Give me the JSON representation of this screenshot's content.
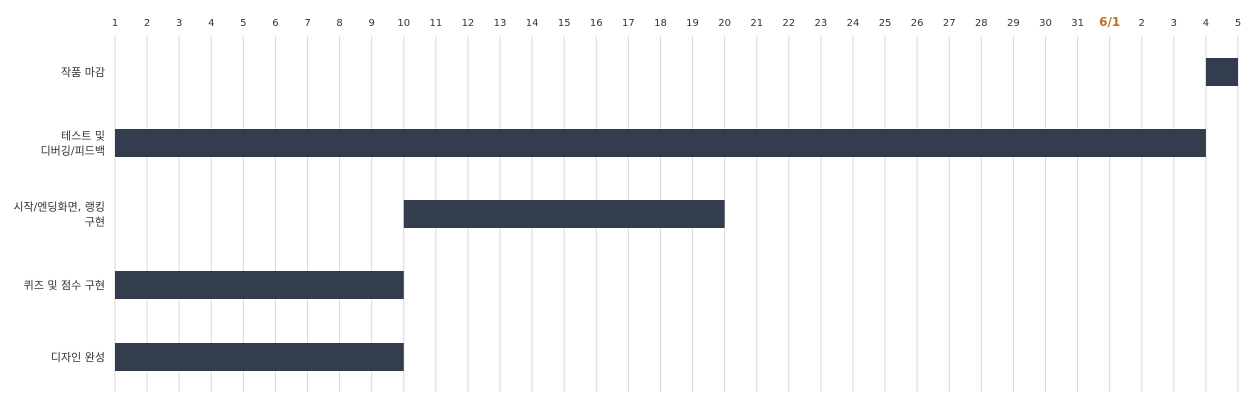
{
  "chart_data": {
    "type": "bar",
    "orientation": "horizontal-gantt",
    "title": "",
    "xlabel": "",
    "ylabel": "",
    "x_ticks": [
      "1",
      "2",
      "3",
      "4",
      "5",
      "6",
      "7",
      "8",
      "9",
      "10",
      "11",
      "12",
      "13",
      "14",
      "15",
      "16",
      "17",
      "18",
      "19",
      "20",
      "21",
      "22",
      "23",
      "24",
      "25",
      "26",
      "27",
      "28",
      "29",
      "30",
      "31",
      "6/1",
      "2",
      "3",
      "4",
      "5"
    ],
    "x_ticks_highlighted": [
      "6/1"
    ],
    "month_accent_color": "#c07020",
    "bar_color": "#333d4e",
    "grid": true,
    "tasks": [
      {
        "name": "작품 마감",
        "lines": [
          "작품 마감"
        ],
        "start": "6/4",
        "end": "6/5"
      },
      {
        "name": "테스트 및 디버깅/피드백",
        "lines": [
          "테스트 및",
          "디버깅/피드백"
        ],
        "start": "5/1",
        "end": "6/4"
      },
      {
        "name": "시작/엔딩화면, 랭킹 구현",
        "lines": [
          "시작/엔딩화면, 랭킹",
          "구현"
        ],
        "start": "5/10",
        "end": "5/20"
      },
      {
        "name": "퀴즈 및 점수 구현",
        "lines": [
          "퀴즈 및 점수 구현"
        ],
        "start": "5/1",
        "end": "5/10"
      },
      {
        "name": "디자인 완성",
        "lines": [
          "디자인 완성"
        ],
        "start": "5/1",
        "end": "5/10"
      }
    ]
  }
}
